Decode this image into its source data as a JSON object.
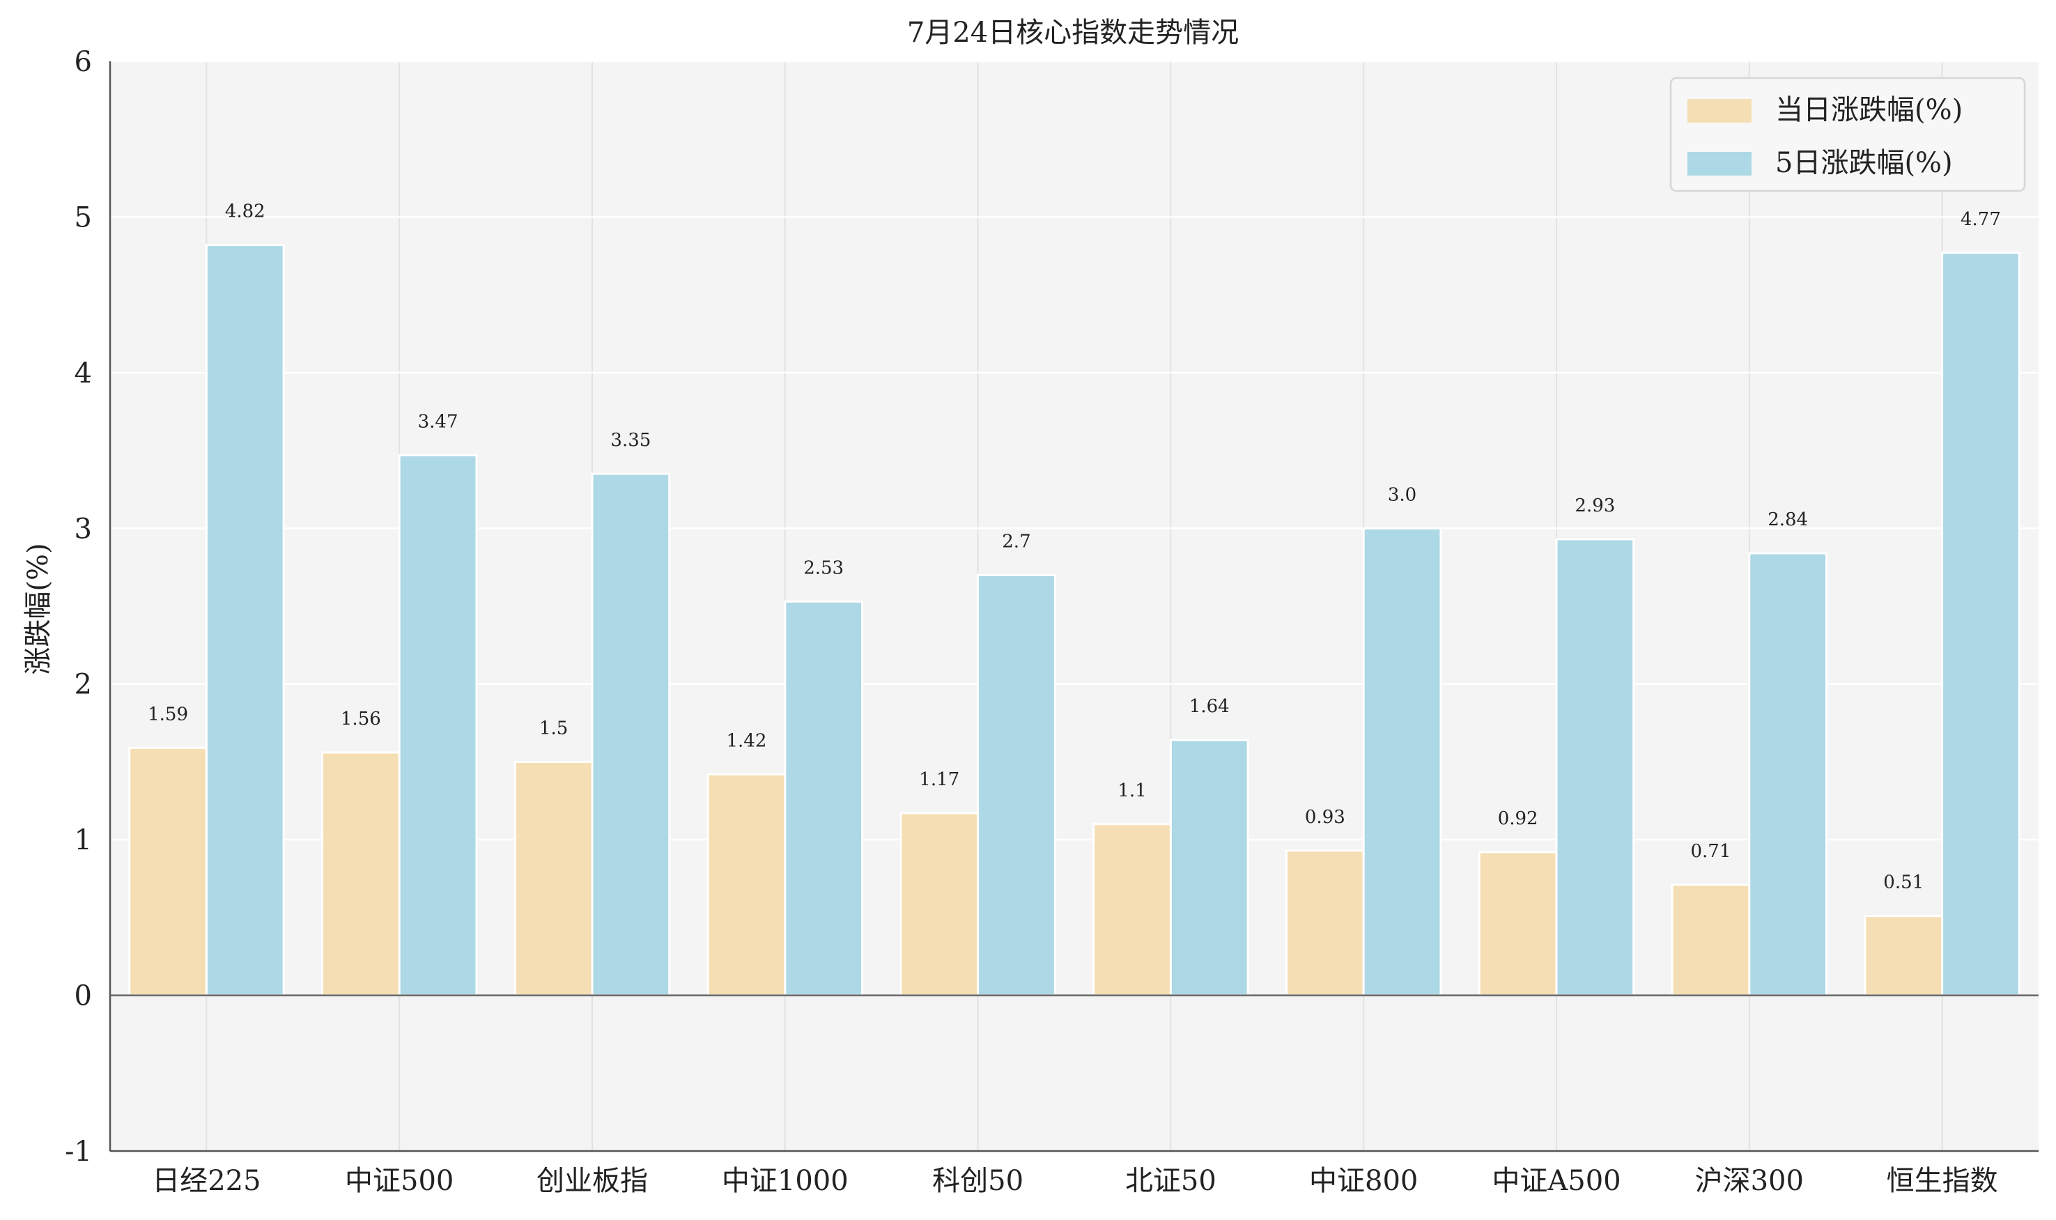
{
  "chart_data": {
    "type": "bar",
    "title": "7月24日核心指数走势情况",
    "xlabel": "",
    "ylabel": "涨跌幅(%)",
    "ylim": [
      -1,
      6
    ],
    "yticks": [
      -1,
      0,
      1,
      2,
      3,
      4,
      5,
      6
    ],
    "grid": true,
    "legend_position": "top-right",
    "categories": [
      "日经225",
      "中证500",
      "创业板指",
      "中证1000",
      "科创50",
      "北证50",
      "中证800",
      "中证A500",
      "沪深300",
      "恒生指数"
    ],
    "series": [
      {
        "name": "当日涨跌幅(%)",
        "color": "#f5deb3",
        "values": [
          1.59,
          1.56,
          1.5,
          1.42,
          1.17,
          1.1,
          0.93,
          0.92,
          0.71,
          0.51
        ],
        "labels": [
          "1.59",
          "1.56",
          "1.5",
          "1.42",
          "1.17",
          "1.1",
          "0.93",
          "0.92",
          "0.71",
          "0.51"
        ]
      },
      {
        "name": "5日涨跌幅(%)",
        "color": "#add8e6",
        "values": [
          4.82,
          3.47,
          3.35,
          2.53,
          2.7,
          1.64,
          3.0,
          2.93,
          2.84,
          4.77
        ],
        "labels": [
          "4.82",
          "3.47",
          "3.35",
          "2.53",
          "2.7",
          "1.64",
          "3.0",
          "2.93",
          "2.84",
          "4.77"
        ]
      }
    ]
  }
}
